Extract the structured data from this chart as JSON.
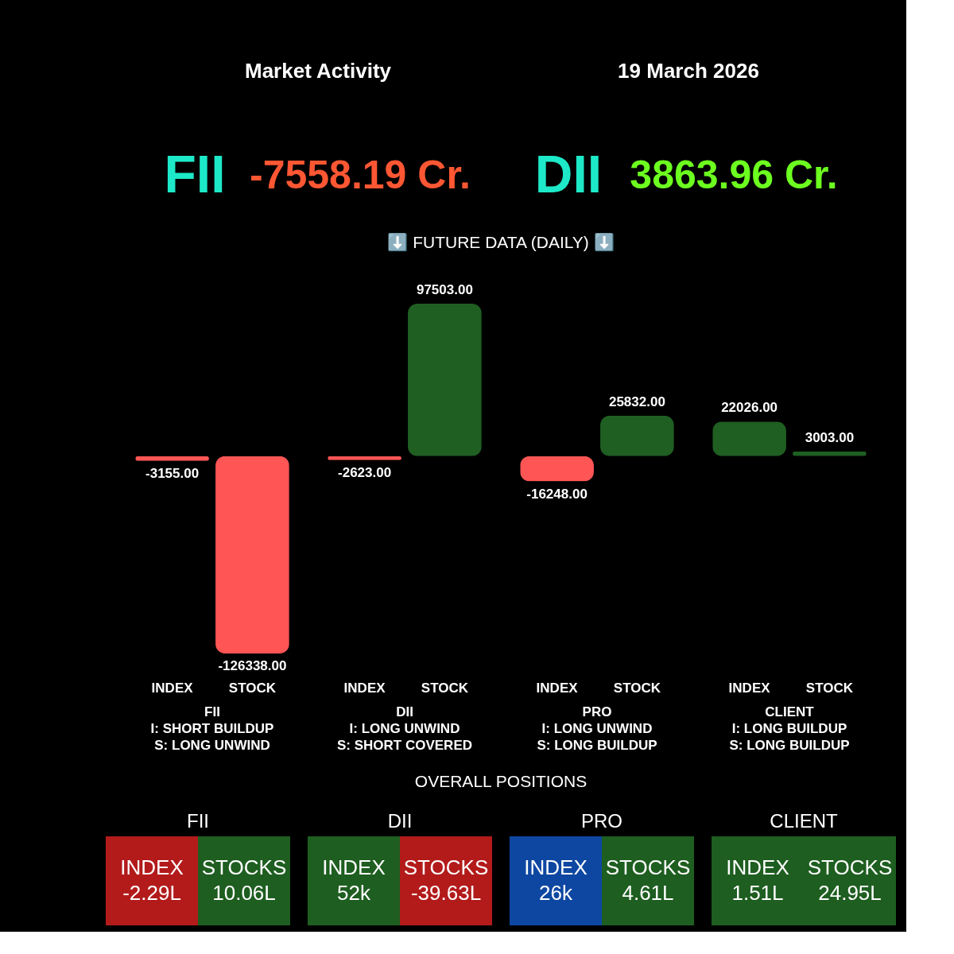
{
  "chart_data": [
    {
      "type": "other",
      "title": "Market Activity",
      "subtitle": "19 March 2026",
      "annotations": [
        "FII",
        "-7558.19 Cr.",
        "DII",
        "3863.96 Cr."
      ]
    },
    {
      "type": "bar",
      "title": "⬇️ FUTURE DATA (DAILY) ⬇️",
      "categories": [
        "INDEX",
        "STOCK",
        "INDEX",
        "STOCK",
        "INDEX",
        "STOCK",
        "INDEX",
        "STOCK"
      ],
      "values": [
        -3155,
        -126338,
        -2623,
        97503,
        -16248,
        25832,
        22026,
        3003
      ],
      "colors": [
        "#ff5555",
        "#ff5555",
        "#ff5555",
        "#1f5f22",
        "#ff5555",
        "#1f5f22",
        "#1f5f22",
        "#1f5f22"
      ],
      "value_labels": [
        "-3155.00",
        "-126338.00",
        "-2623.00",
        "97503.00",
        "-16248.00",
        "25832.00",
        "22026.00",
        "3003.00"
      ],
      "annotations": [
        "FII\nI: SHORT BUILDUP\nS: LONG UNWIND",
        "DII\nI: LONG UNWIND\nS: SHORT COVERED",
        "PRO\nI: LONG UNWIND\nS: LONG BUILDUP",
        "CLIENT\nI: LONG BUILDUP\nS: LONG BUILDUP"
      ]
    },
    {
      "type": "other",
      "title": "OVERALL POSITIONS"
    },
    {
      "type": "other",
      "title": "FII",
      "categories": [
        "INDEX",
        "STOCKS"
      ],
      "annotations": [
        "-2.29L",
        "10.06L"
      ],
      "colors": [
        "#b31b1b",
        "#1e5e20"
      ]
    },
    {
      "type": "other",
      "title": "DII",
      "categories": [
        "INDEX",
        "STOCKS"
      ],
      "annotations": [
        "52k",
        "-39.63L"
      ],
      "colors": [
        "#1e5e20",
        "#b31b1b"
      ]
    },
    {
      "type": "other",
      "title": "PRO",
      "categories": [
        "INDEX",
        "STOCKS"
      ],
      "annotations": [
        "26k",
        "4.61L"
      ],
      "colors": [
        "#0d47a1",
        "#1e5e20"
      ]
    },
    {
      "type": "other",
      "title": "CLIENT",
      "categories": [
        "INDEX",
        "STOCKS"
      ],
      "annotations": [
        "1.51L",
        "24.95L"
      ],
      "colors": [
        "#1e5e20",
        "#1e5e20"
      ]
    }
  ]
}
